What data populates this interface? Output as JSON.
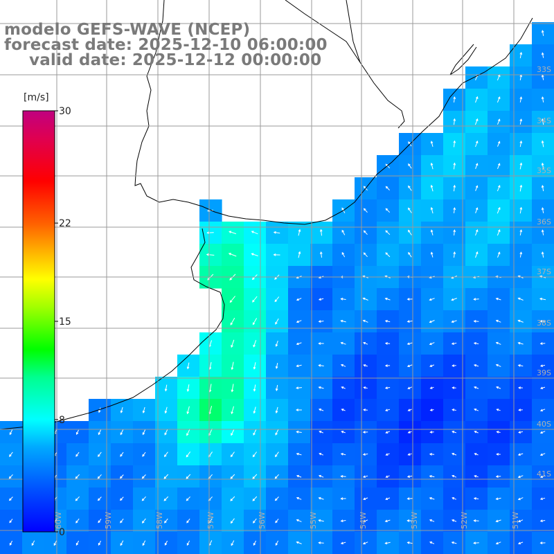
{
  "header": {
    "line1": "modelo GEFS-WAVE (NCEP)",
    "line2": "forecast date: 2025-12-10 06:00:00",
    "line3": "valid date: 2025-12-12 00:00:00"
  },
  "colorbar": {
    "unit": "[m/s]",
    "ticks": [
      "30",
      "22",
      "15",
      "8",
      "0"
    ],
    "tick_values": [
      30,
      22,
      15,
      8,
      0
    ],
    "range": [
      0,
      30
    ],
    "colors": [
      "#0000ff",
      "#00a0ff",
      "#00ffff",
      "#00ff80",
      "#00e000",
      "#80ff00",
      "#ffff00",
      "#ffb000",
      "#ff6000",
      "#ff0000",
      "#e00050",
      "#c00080"
    ]
  },
  "longitude_labels": [
    "60W",
    "59W",
    "58W",
    "57W",
    "56W",
    "55W",
    "54W",
    "53W",
    "52W",
    "51W"
  ],
  "latitude_labels": [
    "33S",
    "34S",
    "35S",
    "36S",
    "37S",
    "38S",
    "39S",
    "40S",
    "41S"
  ],
  "map": {
    "land_color": "#ffffff",
    "grid_color": "#9a9a9a",
    "coast_color": "#000000",
    "arrow_color": "#ffffff"
  }
}
